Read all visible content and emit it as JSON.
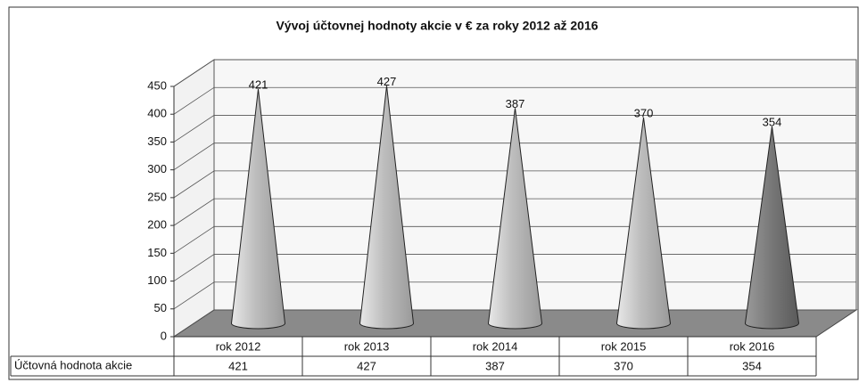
{
  "chart_data": {
    "type": "cone",
    "title": "Vývoj účtovnej hodnoty akcie v € za roky 2012 až 2016",
    "categories": [
      "rok 2012",
      "rok 2013",
      "rok 2014",
      "rok 2015",
      "rok 2016"
    ],
    "series": [
      {
        "name": "Účtovná hodnota akcie",
        "color": "#c8c8c8",
        "values": [
          421,
          427,
          387,
          370,
          354
        ]
      }
    ],
    "ylim": [
      0,
      450
    ],
    "yticks": [
      0,
      50,
      100,
      150,
      200,
      250,
      300,
      350,
      400,
      450
    ],
    "grid": true
  }
}
